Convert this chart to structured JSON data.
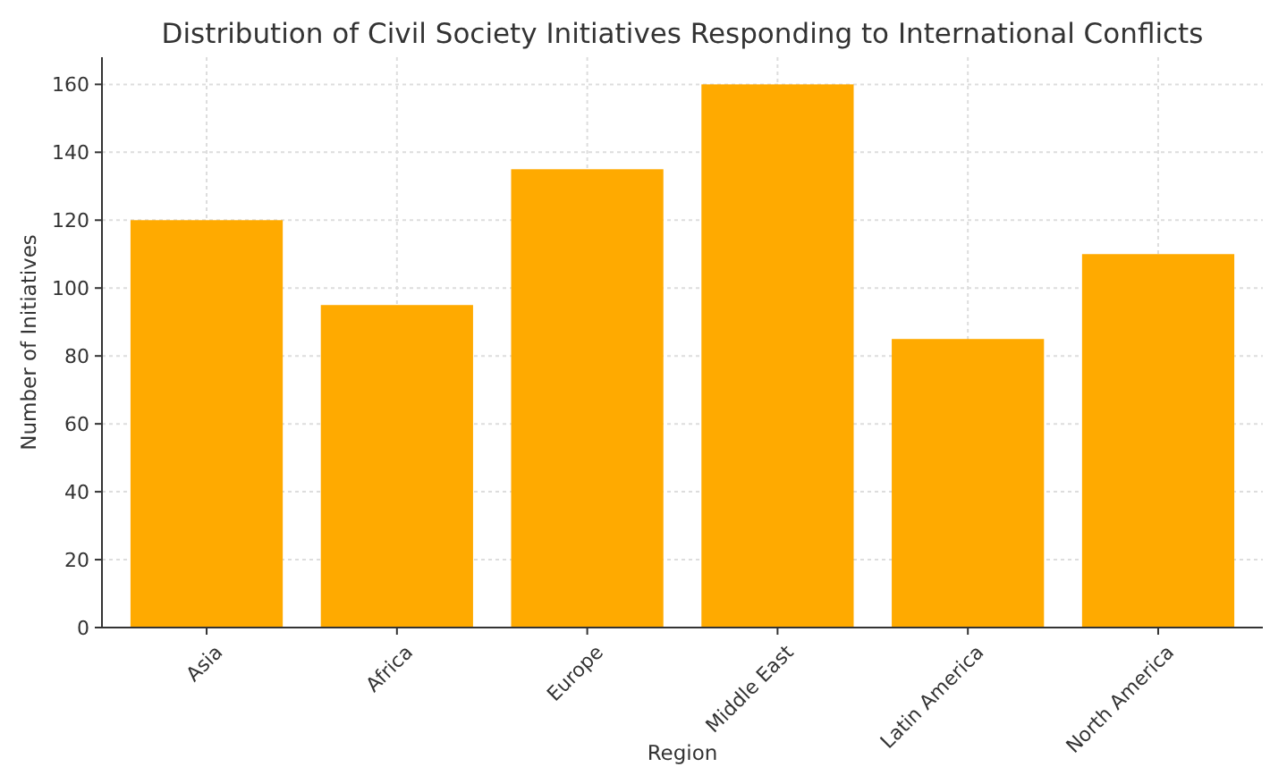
{
  "chart_data": {
    "type": "bar",
    "title": "Distribution of Civil Society Initiatives Responding to International Conflicts",
    "xlabel": "Region",
    "ylabel": "Number of Initiatives",
    "categories": [
      "Asia",
      "Africa",
      "Europe",
      "Middle East",
      "Latin America",
      "North America"
    ],
    "values": [
      120,
      95,
      135,
      160,
      85,
      110
    ],
    "color": "#ffaa00",
    "ylim": [
      0,
      168
    ],
    "yticks": [
      0,
      20,
      40,
      60,
      80,
      100,
      120,
      140,
      160
    ],
    "grid": true
  }
}
